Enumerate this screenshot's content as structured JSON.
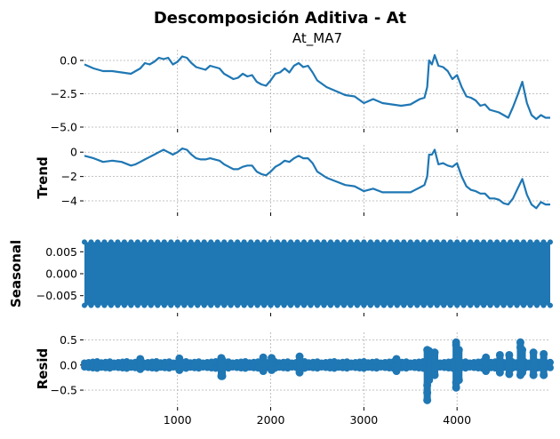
{
  "chart_data": {
    "type": "line",
    "title": "Descomposición Aditiva - At",
    "color": "#1f77b4",
    "grid": true,
    "xlim": [
      1,
      5000
    ],
    "xticks": [
      1000,
      2000,
      3000,
      4000
    ],
    "xtick_labels": [
      "1000",
      "2000",
      "3000",
      "4000"
    ],
    "panels": [
      {
        "key": "observed",
        "label": "",
        "subtitle": "At_MA7",
        "ylim": [
          -5.0,
          0.8
        ],
        "yticks": [
          0.0,
          -2.5,
          -5.0
        ],
        "ytick_labels": [
          "0.0",
          "−2.5",
          "−5.0"
        ],
        "style": "line",
        "x": [
          1,
          100,
          200,
          300,
          400,
          500,
          550,
          600,
          650,
          700,
          750,
          800,
          850,
          900,
          950,
          1000,
          1050,
          1100,
          1150,
          1200,
          1250,
          1300,
          1350,
          1400,
          1450,
          1500,
          1550,
          1600,
          1650,
          1700,
          1750,
          1800,
          1850,
          1900,
          1950,
          2000,
          2050,
          2100,
          2150,
          2200,
          2250,
          2300,
          2350,
          2400,
          2450,
          2500,
          2600,
          2700,
          2800,
          2900,
          3000,
          3100,
          3200,
          3300,
          3400,
          3500,
          3550,
          3600,
          3650,
          3680,
          3700,
          3730,
          3760,
          3800,
          3850,
          3900,
          3950,
          4000,
          4050,
          4100,
          4150,
          4200,
          4250,
          4300,
          4350,
          4400,
          4450,
          4500,
          4550,
          4600,
          4650,
          4700,
          4750,
          4800,
          4850,
          4900,
          4950,
          5000
        ],
        "values": [
          -0.3,
          -0.6,
          -0.8,
          -0.8,
          -0.9,
          -1.0,
          -0.8,
          -0.6,
          -0.2,
          -0.3,
          -0.1,
          0.2,
          0.1,
          0.2,
          -0.3,
          -0.1,
          0.3,
          0.2,
          -0.2,
          -0.5,
          -0.6,
          -0.7,
          -0.4,
          -0.5,
          -0.6,
          -1.0,
          -1.2,
          -1.4,
          -1.3,
          -1.0,
          -1.2,
          -1.1,
          -1.6,
          -1.8,
          -1.9,
          -1.5,
          -1.0,
          -0.9,
          -0.6,
          -0.9,
          -0.4,
          -0.2,
          -0.5,
          -0.4,
          -0.9,
          -1.5,
          -2.0,
          -2.3,
          -2.6,
          -2.7,
          -3.2,
          -2.9,
          -3.2,
          -3.3,
          -3.4,
          -3.3,
          -3.1,
          -2.9,
          -2.8,
          -2.0,
          0.0,
          -0.3,
          0.4,
          -0.4,
          -0.5,
          -0.8,
          -1.4,
          -1.1,
          -2.0,
          -2.7,
          -2.8,
          -3.0,
          -3.4,
          -3.3,
          -3.7,
          -3.8,
          -3.9,
          -4.1,
          -4.3,
          -3.5,
          -2.6,
          -1.6,
          -3.2,
          -4.1,
          -4.4,
          -4.1,
          -4.3,
          -4.3
        ]
      },
      {
        "key": "trend",
        "label": "Trend",
        "subtitle": "",
        "ylim": [
          -4.8,
          0.6
        ],
        "yticks": [
          0,
          -2,
          -4
        ],
        "ytick_labels": [
          "0",
          "−2",
          "−4"
        ],
        "style": "line",
        "x": [
          1,
          100,
          200,
          300,
          400,
          500,
          550,
          600,
          650,
          700,
          750,
          800,
          850,
          900,
          950,
          1000,
          1050,
          1100,
          1150,
          1200,
          1250,
          1300,
          1350,
          1400,
          1450,
          1500,
          1550,
          1600,
          1650,
          1700,
          1750,
          1800,
          1850,
          1900,
          1950,
          2000,
          2050,
          2100,
          2150,
          2200,
          2250,
          2300,
          2350,
          2400,
          2450,
          2500,
          2600,
          2700,
          2800,
          2900,
          3000,
          3100,
          3200,
          3300,
          3400,
          3500,
          3550,
          3600,
          3650,
          3680,
          3700,
          3730,
          3760,
          3800,
          3850,
          3900,
          3950,
          4000,
          4050,
          4100,
          4150,
          4200,
          4250,
          4300,
          4350,
          4400,
          4450,
          4500,
          4550,
          4600,
          4650,
          4700,
          4750,
          4800,
          4850,
          4900,
          4950,
          5000
        ],
        "values": [
          -0.3,
          -0.5,
          -0.8,
          -0.7,
          -0.8,
          -1.1,
          -1.0,
          -0.8,
          -0.6,
          -0.4,
          -0.2,
          0.0,
          0.2,
          0.0,
          -0.2,
          0.0,
          0.3,
          0.2,
          -0.2,
          -0.5,
          -0.6,
          -0.6,
          -0.5,
          -0.6,
          -0.7,
          -1.0,
          -1.2,
          -1.4,
          -1.4,
          -1.2,
          -1.1,
          -1.1,
          -1.6,
          -1.8,
          -1.9,
          -1.6,
          -1.2,
          -1.0,
          -0.7,
          -0.8,
          -0.5,
          -0.3,
          -0.5,
          -0.5,
          -0.9,
          -1.6,
          -2.1,
          -2.4,
          -2.7,
          -2.8,
          -3.2,
          -3.0,
          -3.3,
          -3.3,
          -3.3,
          -3.3,
          -3.1,
          -2.9,
          -2.7,
          -2.0,
          -0.2,
          -0.2,
          0.2,
          -1.0,
          -0.9,
          -1.1,
          -1.2,
          -0.9,
          -2.0,
          -2.8,
          -3.1,
          -3.2,
          -3.4,
          -3.4,
          -3.8,
          -3.8,
          -3.9,
          -4.2,
          -4.3,
          -3.8,
          -3.0,
          -2.2,
          -3.5,
          -4.3,
          -4.6,
          -4.1,
          -4.3,
          -4.3
        ]
      },
      {
        "key": "seasonal",
        "label": "Seasonal",
        "subtitle": "",
        "ylim": [
          -0.0085,
          0.0085
        ],
        "yticks": [
          0.005,
          0.0,
          -0.005
        ],
        "ytick_labels": [
          "0.005",
          "0.000",
          "−0.005"
        ],
        "style": "band",
        "band_range": [
          -0.0072,
          0.0072
        ]
      },
      {
        "key": "resid",
        "label": "Resid",
        "subtitle": "",
        "ylim": [
          -0.8,
          0.65
        ],
        "yticks": [
          0.5,
          0.0,
          -0.5
        ],
        "ytick_labels": [
          "0.5",
          "0.0",
          "−0.5"
        ],
        "style": "dots",
        "baseline_amplitude": 0.05,
        "spikes": [
          {
            "x": 600,
            "values": [
              0.12,
              -0.08
            ]
          },
          {
            "x": 1020,
            "values": [
              0.13,
              -0.1
            ]
          },
          {
            "x": 1470,
            "values": [
              0.14,
              -0.22
            ]
          },
          {
            "x": 1480,
            "values": [
              -0.22,
              0.1
            ]
          },
          {
            "x": 1920,
            "values": [
              0.15,
              -0.12
            ]
          },
          {
            "x": 2010,
            "values": [
              0.14,
              -0.1
            ]
          },
          {
            "x": 2310,
            "values": [
              0.17,
              -0.15
            ]
          },
          {
            "x": 3350,
            "values": [
              0.12,
              -0.12
            ]
          },
          {
            "x": 3680,
            "values": [
              0.3,
              -0.4,
              -0.55,
              -0.7
            ]
          },
          {
            "x": 3700,
            "values": [
              0.28,
              -0.3
            ]
          },
          {
            "x": 3720,
            "values": [
              0.2,
              -0.2
            ]
          },
          {
            "x": 3760,
            "values": [
              0.25,
              -0.2
            ]
          },
          {
            "x": 3990,
            "values": [
              0.4,
              0.45,
              -0.35,
              -0.45
            ]
          },
          {
            "x": 4020,
            "values": [
              0.3,
              -0.3
            ]
          },
          {
            "x": 4310,
            "values": [
              0.15,
              -0.12
            ]
          },
          {
            "x": 4460,
            "values": [
              0.2,
              -0.15
            ]
          },
          {
            "x": 4560,
            "values": [
              0.2,
              -0.18
            ]
          },
          {
            "x": 4680,
            "values": [
              0.35,
              0.45,
              -0.2
            ]
          },
          {
            "x": 4700,
            "values": [
              0.3,
              -0.15
            ]
          },
          {
            "x": 4820,
            "values": [
              0.25,
              -0.2
            ]
          },
          {
            "x": 4930,
            "values": [
              0.22,
              -0.2
            ]
          }
        ]
      }
    ]
  }
}
